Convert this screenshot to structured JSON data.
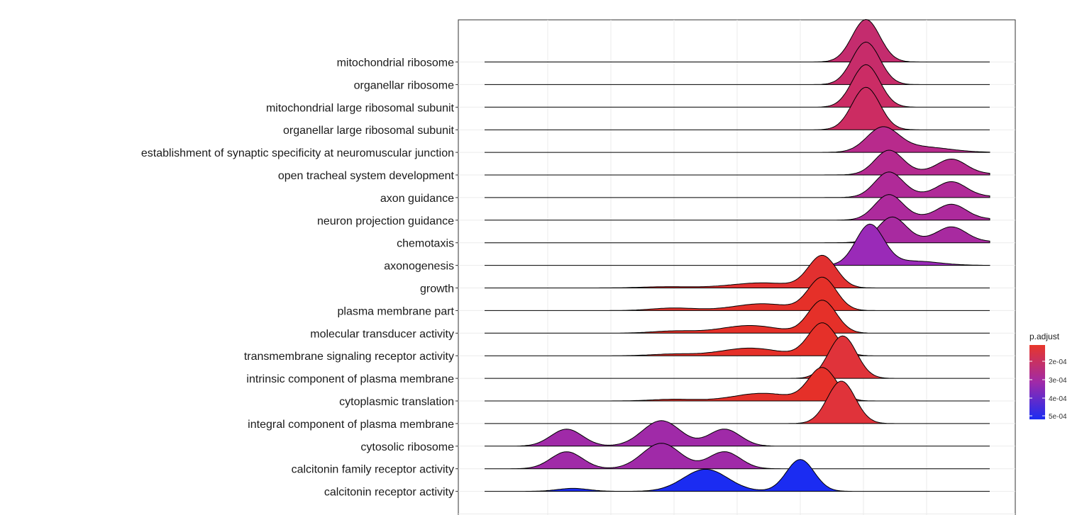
{
  "chart_data": {
    "type": "ridgeline",
    "title": "",
    "xlabel": "",
    "ylabel": "",
    "grid": true,
    "legend_position": "right",
    "x_domain": [
      -6.0,
      2.0
    ],
    "colorbar": {
      "title": "p.adjust",
      "ticks": [
        "2e-04",
        "3e-04",
        "4e-04",
        "5e-04"
      ],
      "low_color": "#e8362a",
      "high_color": "#1b2cf2"
    },
    "rows": [
      {
        "label": "mitochondrial ribosome",
        "color": "#c42c6e",
        "peaks": [
          [
            0.04,
            1.0,
            0.22
          ]
        ]
      },
      {
        "label": "organellar ribosome",
        "color": "#c72c6a",
        "peaks": [
          [
            0.04,
            1.0,
            0.22
          ]
        ]
      },
      {
        "label": "mitochondrial large ribosomal subunit",
        "color": "#cb2c65",
        "peaks": [
          [
            0.04,
            1.0,
            0.22
          ]
        ]
      },
      {
        "label": "organellar large ribosomal subunit",
        "color": "#cc2c62",
        "peaks": [
          [
            0.04,
            1.0,
            0.22
          ]
        ]
      },
      {
        "label": "establishment of synaptic specificity at neuromuscular junction",
        "color": "#b82a8c",
        "peaks": [
          [
            0.3,
            0.55,
            0.25
          ],
          [
            0.9,
            0.13,
            0.45
          ]
        ]
      },
      {
        "label": "open tracheal system development",
        "color": "#b52a90",
        "peaks": [
          [
            0.4,
            0.55,
            0.22
          ],
          [
            1.4,
            0.3,
            0.22
          ],
          [
            1.2,
            0.08,
            0.6
          ]
        ]
      },
      {
        "label": "axon guidance",
        "color": "#b02a98",
        "peaks": [
          [
            0.4,
            0.57,
            0.22
          ],
          [
            1.4,
            0.3,
            0.22
          ],
          [
            1.2,
            0.08,
            0.6
          ]
        ]
      },
      {
        "label": "neuron projection guidance",
        "color": "#ad2a9c",
        "peaks": [
          [
            0.4,
            0.57,
            0.22
          ],
          [
            1.4,
            0.3,
            0.22
          ],
          [
            1.2,
            0.08,
            0.6
          ]
        ]
      },
      {
        "label": "chemotaxis",
        "color": "#a82aa0",
        "peaks": [
          [
            0.45,
            0.57,
            0.22
          ],
          [
            1.4,
            0.3,
            0.22
          ],
          [
            1.2,
            0.08,
            0.6
          ]
        ]
      },
      {
        "label": "axonogenesis",
        "color": "#9a2ab8",
        "peaks": [
          [
            0.1,
            0.95,
            0.22
          ],
          [
            0.8,
            0.1,
            0.4
          ]
        ]
      },
      {
        "label": "growth",
        "color": "#e23030",
        "peaks": [
          [
            -0.65,
            0.75,
            0.22
          ],
          [
            -1.6,
            0.12,
            0.5
          ],
          [
            -3.1,
            0.03,
            0.4
          ]
        ]
      },
      {
        "label": "plasma membrane part",
        "color": "#e53029",
        "peaks": [
          [
            -0.65,
            0.77,
            0.22
          ],
          [
            -1.6,
            0.16,
            0.45
          ],
          [
            -3.0,
            0.06,
            0.35
          ]
        ]
      },
      {
        "label": "molecular transducer activity",
        "color": "#e53029",
        "peaks": [
          [
            -0.65,
            0.77,
            0.22
          ],
          [
            -1.8,
            0.18,
            0.45
          ],
          [
            -3.0,
            0.05,
            0.35
          ]
        ]
      },
      {
        "label": "transmembrane signaling receptor activity",
        "color": "#e53029",
        "peaks": [
          [
            -0.65,
            0.77,
            0.22
          ],
          [
            -1.8,
            0.18,
            0.45
          ],
          [
            -3.0,
            0.04,
            0.35
          ]
        ]
      },
      {
        "label": "intrinsic component of plasma membrane",
        "color": "#e0333a",
        "peaks": [
          [
            -0.33,
            1.0,
            0.22
          ]
        ]
      },
      {
        "label": "cytoplasmic translation",
        "color": "#e53029",
        "peaks": [
          [
            -0.65,
            0.77,
            0.22
          ],
          [
            -1.6,
            0.18,
            0.45
          ],
          [
            -3.0,
            0.04,
            0.35
          ]
        ]
      },
      {
        "label": "integral component of plasma membrane",
        "color": "#e0333a",
        "peaks": [
          [
            -0.35,
            1.0,
            0.22
          ]
        ]
      },
      {
        "label": "cytosolic ribosome",
        "color": "#a02aa8",
        "peaks": [
          [
            -4.7,
            0.4,
            0.25
          ],
          [
            -3.2,
            0.6,
            0.3
          ],
          [
            -2.2,
            0.4,
            0.25
          ]
        ]
      },
      {
        "label": "calcitonin family receptor activity",
        "color": "#a02aa8",
        "peaks": [
          [
            -4.7,
            0.4,
            0.25
          ],
          [
            -3.2,
            0.6,
            0.3
          ],
          [
            -2.2,
            0.4,
            0.25
          ]
        ]
      },
      {
        "label": "calcitonin receptor activity",
        "color": "#1b2cf2",
        "peaks": [
          [
            -1.0,
            0.75,
            0.22
          ],
          [
            -2.5,
            0.52,
            0.35
          ],
          [
            -4.6,
            0.07,
            0.25
          ]
        ]
      }
    ]
  }
}
